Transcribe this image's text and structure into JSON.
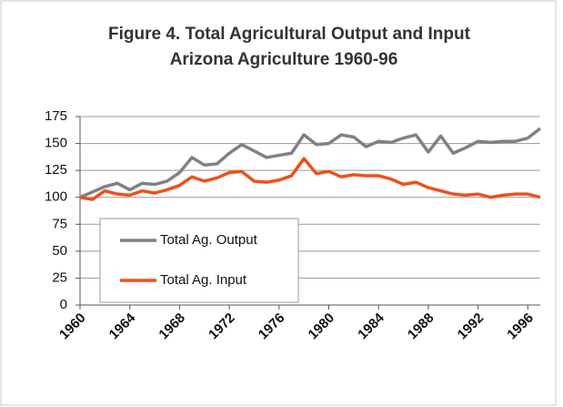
{
  "chart_data": {
    "type": "line",
    "title": "Figure 4. Total Agricultural Output and Input",
    "subtitle": "Arizona Agriculture 1960-96",
    "x": [
      1960,
      1961,
      1962,
      1963,
      1964,
      1965,
      1966,
      1967,
      1968,
      1969,
      1970,
      1971,
      1972,
      1973,
      1974,
      1975,
      1976,
      1977,
      1978,
      1979,
      1980,
      1981,
      1982,
      1983,
      1984,
      1985,
      1986,
      1987,
      1988,
      1989,
      1990,
      1991,
      1992,
      1993,
      1994,
      1995,
      1996,
      1997
    ],
    "series": [
      {
        "name": "Total Ag. Output",
        "color": "#80808a",
        "values": [
          100,
          105,
          110,
          113,
          107,
          113,
          112,
          115,
          123,
          137,
          130,
          131,
          141,
          149,
          143,
          137,
          139,
          141,
          158,
          149,
          150,
          158,
          156,
          147,
          152,
          151,
          155,
          158,
          142,
          157,
          141,
          146,
          152,
          151,
          152,
          152,
          155,
          164
        ]
      },
      {
        "name": "Total Ag. Input",
        "color": "#f0501a",
        "values": [
          100,
          98,
          106,
          103,
          102,
          106,
          104,
          107,
          111,
          119,
          115,
          118,
          123,
          124,
          115,
          114,
          116,
          120,
          136,
          122,
          124,
          119,
          121,
          120,
          120,
          117,
          112,
          114,
          109,
          106,
          103,
          102,
          103,
          100,
          102,
          103,
          103,
          100
        ]
      }
    ],
    "xlim": [
      1960,
      1997
    ],
    "xticks": [
      1960,
      1964,
      1968,
      1972,
      1976,
      1980,
      1984,
      1988,
      1992,
      1996
    ],
    "ylim": [
      0,
      175
    ],
    "yticks": [
      0,
      25,
      50,
      75,
      100,
      125,
      150,
      175
    ],
    "grid": true,
    "legend": "lower left"
  }
}
